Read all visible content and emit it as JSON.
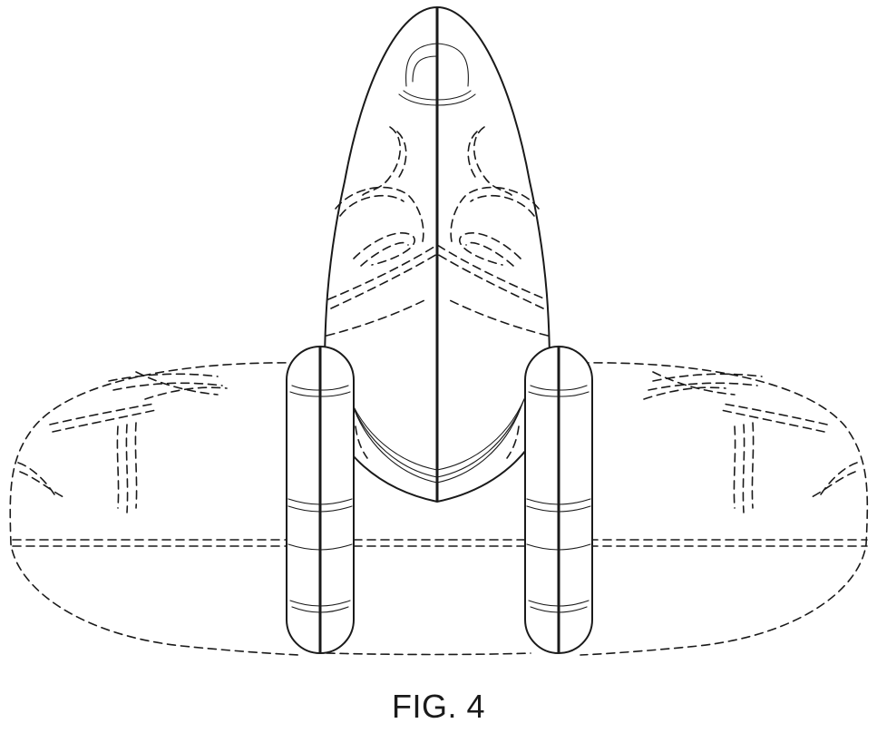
{
  "figure": {
    "caption": "FIG. 4",
    "line_color": "#1a1a1a",
    "background": "#ffffff"
  }
}
